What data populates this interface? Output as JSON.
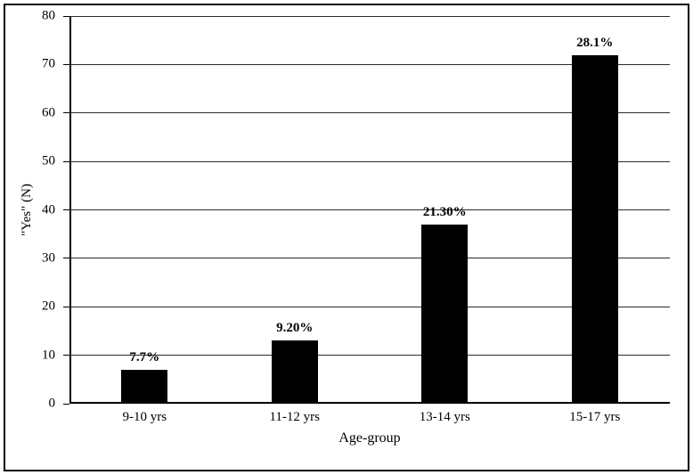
{
  "chart_data": {
    "type": "bar",
    "title": "",
    "categories": [
      "9-10 yrs",
      "11-12 yrs",
      "13-14 yrs",
      "15-17 yrs"
    ],
    "values": [
      7,
      13,
      37,
      72
    ],
    "bar_labels": [
      "7.7%",
      "9.20%",
      "21.30%",
      "28.1%"
    ],
    "xlabel": "Age-group",
    "ylabel": "\"Yes\" (N)",
    "ylim": [
      0,
      80
    ],
    "yticks": [
      0,
      10,
      20,
      30,
      40,
      50,
      60,
      70,
      80
    ],
    "grid": "horizontal",
    "legend_position": "none",
    "bar_color": "#000000",
    "background_color": "#ffffff",
    "border_color": "#000000"
  }
}
